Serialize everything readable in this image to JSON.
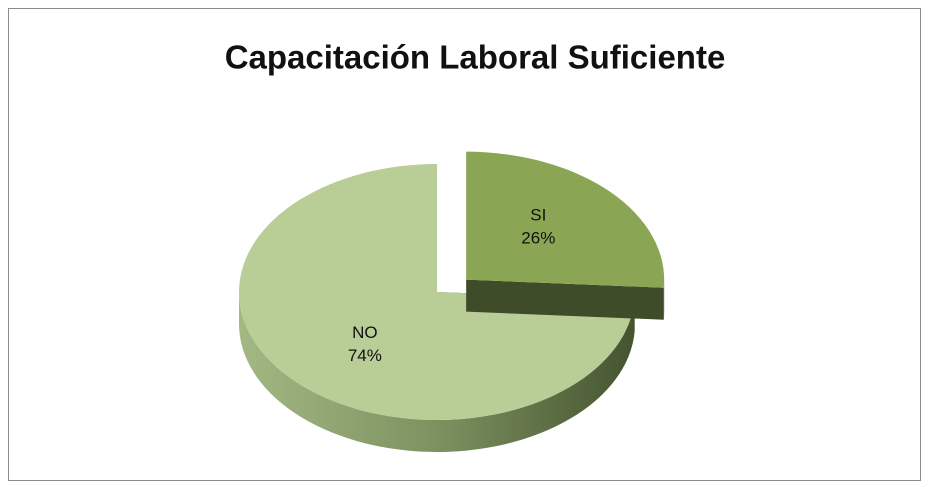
{
  "chart_data": {
    "type": "pie3d",
    "title": "Capacitación Laboral Suficiente",
    "categories": [
      "SI",
      "NO"
    ],
    "values": [
      26,
      74
    ],
    "value_labels": [
      "26%",
      "74%"
    ],
    "colors": [
      "#8aa654",
      "#b9cd96"
    ]
  }
}
